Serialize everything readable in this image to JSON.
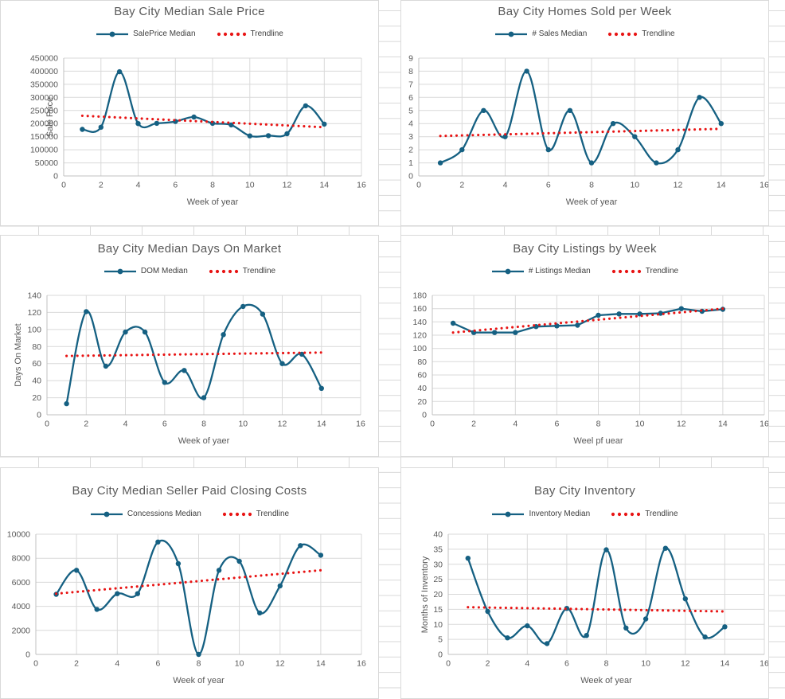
{
  "sheet": {
    "background": "#ffffff",
    "grid_color": "#d9d9d9"
  },
  "colors": {
    "series": "#156082",
    "trendline": "#e81414",
    "title_text": "#595959",
    "axis_text": "#595959",
    "legend_text": "#404040",
    "gridline": "#d9d9d9",
    "axis_line": "#c0c0c0",
    "panel_border": "#d9d9d9"
  },
  "chart_data": [
    {
      "type": "line",
      "title": "Bay City Median Sale Price",
      "x": [
        1,
        2,
        3,
        4,
        5,
        6,
        7,
        8,
        9,
        10,
        11,
        12,
        13,
        14
      ],
      "series": [
        {
          "name": "SalePrice Median",
          "smooth": true,
          "values": [
            178000,
            186000,
            398000,
            200000,
            201000,
            208000,
            225000,
            201000,
            195000,
            153000,
            154000,
            161000,
            268000,
            198000
          ]
        }
      ],
      "trendline": {
        "name": "Trendline",
        "start": 230000,
        "end": 186000
      },
      "xlabel": "Week of year",
      "ylabel": "Sale Price",
      "xlim": [
        0,
        16
      ],
      "xstep": 2,
      "ylim": [
        0,
        450000
      ],
      "ystep": 50000,
      "grid": true,
      "legend_position": "top"
    },
    {
      "type": "line",
      "title": "Bay City Homes Sold per Week",
      "x": [
        1,
        2,
        3,
        4,
        5,
        6,
        7,
        8,
        9,
        10,
        11,
        12,
        13,
        14
      ],
      "series": [
        {
          "name": "# Sales Median",
          "smooth": true,
          "values": [
            1,
            2,
            5,
            3,
            8,
            2,
            5,
            1,
            4,
            3,
            1,
            2,
            6,
            4
          ]
        }
      ],
      "trendline": {
        "name": "Trendline",
        "start": 3.05,
        "end": 3.6
      },
      "xlabel": "Week of year",
      "ylabel": null,
      "xlim": [
        0,
        16
      ],
      "xstep": 2,
      "ylim": [
        0,
        9
      ],
      "ystep": 1,
      "grid": true,
      "legend_position": "top"
    },
    {
      "type": "line",
      "title": "Bay City Median Days On Market",
      "x": [
        1,
        2,
        3,
        4,
        5,
        6,
        7,
        8,
        9,
        10,
        11,
        12,
        13,
        14
      ],
      "series": [
        {
          "name": "DOM Median",
          "smooth": true,
          "values": [
            13,
            121,
            57,
            97,
            97,
            38,
            52,
            20,
            94,
            127,
            118,
            60,
            71,
            31
          ]
        }
      ],
      "trendline": {
        "name": "Trendline",
        "start": 69,
        "end": 73
      },
      "xlabel": "Week of yaer",
      "ylabel": "Days On Market",
      "xlim": [
        0,
        16
      ],
      "xstep": 2,
      "ylim": [
        0,
        140
      ],
      "ystep": 20,
      "grid": true,
      "legend_position": "top"
    },
    {
      "type": "line",
      "title": "Bay City Listings by Week",
      "x": [
        1,
        2,
        3,
        4,
        5,
        6,
        7,
        8,
        9,
        10,
        11,
        12,
        13,
        14
      ],
      "series": [
        {
          "name": "# Listings Median",
          "smooth": false,
          "values": [
            138,
            124,
            124,
            124,
            133,
            134,
            135,
            150,
            152,
            152,
            153,
            160,
            156,
            159
          ]
        }
      ],
      "trendline": {
        "name": "Trendline",
        "start": 124,
        "end": 160
      },
      "xlabel": "Weel pf uear",
      "ylabel": null,
      "xlim": [
        0,
        16
      ],
      "xstep": 2,
      "ylim": [
        0,
        180
      ],
      "ystep": 20,
      "grid": true,
      "legend_position": "top"
    },
    {
      "type": "line",
      "title": "Bay City Median Seller Paid Closing Costs",
      "x": [
        1,
        2,
        3,
        4,
        5,
        6,
        7,
        8,
        9,
        10,
        11,
        12,
        13,
        14
      ],
      "series": [
        {
          "name": "Concessions Median",
          "smooth": true,
          "values": [
            5000,
            7000,
            3750,
            5050,
            5050,
            9350,
            7550,
            0,
            7000,
            7750,
            3450,
            5700,
            9050,
            8250
          ]
        }
      ],
      "trendline": {
        "name": "Trendline",
        "start": 5050,
        "end": 7000
      },
      "xlabel": "Week of year",
      "ylabel": null,
      "xlim": [
        0,
        16
      ],
      "xstep": 2,
      "ylim": [
        0,
        10000
      ],
      "ystep": 2000,
      "grid": true,
      "legend_position": "top"
    },
    {
      "type": "line",
      "title": "Bay City Inventory",
      "x": [
        1,
        2,
        3,
        4,
        5,
        6,
        7,
        8,
        9,
        10,
        11,
        12,
        13,
        14
      ],
      "series": [
        {
          "name": "Inventory Median",
          "smooth": true,
          "values": [
            32,
            14.3,
            5.5,
            9.5,
            3.6,
            15.3,
            6.3,
            34.8,
            8.8,
            11.8,
            35.3,
            18.5,
            5.8,
            9.2
          ]
        }
      ],
      "trendline": {
        "name": "Trendline",
        "start": 15.7,
        "end": 14.3
      },
      "xlabel": "Week of year",
      "ylabel": "Months of Inventory",
      "xlim": [
        0,
        16
      ],
      "xstep": 2,
      "ylim": [
        0,
        40
      ],
      "ystep": 5,
      "grid": true,
      "legend_position": "top"
    }
  ]
}
